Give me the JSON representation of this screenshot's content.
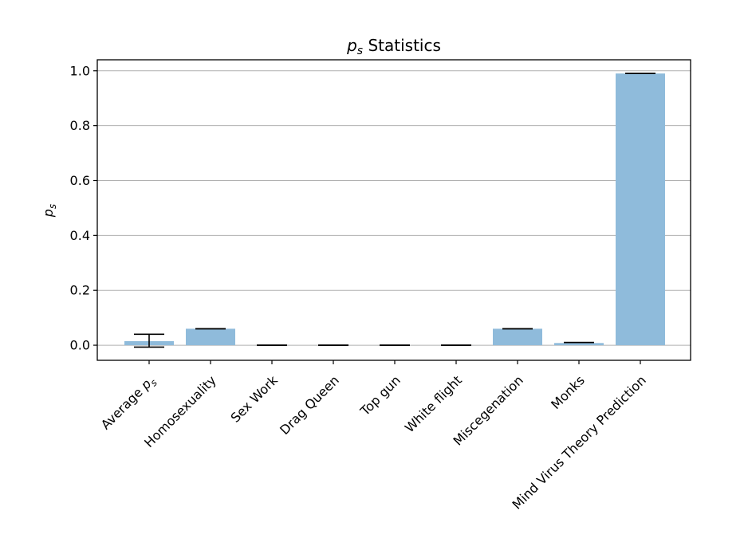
{
  "chart_data": {
    "type": "bar",
    "title_symbol": "p",
    "title_symbol_sub": "s",
    "title_rest": " Statistics",
    "ylabel_symbol": "p",
    "ylabel_sub": "s",
    "categories": [
      {
        "label": "Average ",
        "label_symbol": "p",
        "label_sub": "s"
      },
      {
        "label": "Homosexuality"
      },
      {
        "label": "Sex Work"
      },
      {
        "label": "Drag Queen"
      },
      {
        "label": "Top gun"
      },
      {
        "label": "White flight"
      },
      {
        "label": "Miscegenation"
      },
      {
        "label": "Monks"
      },
      {
        "label": "Mind Virus Theory Prediction"
      }
    ],
    "values": [
      0.015,
      0.06,
      0.0,
      0.0,
      0.0,
      0.0,
      0.06,
      0.008,
      0.99
    ],
    "error_low": [
      -0.007,
      0.06,
      0.0,
      0.0,
      0.0,
      0.0,
      0.06,
      0.01,
      0.99
    ],
    "error_high": [
      0.04,
      0.06,
      0.0,
      0.0,
      0.0,
      0.0,
      0.06,
      0.01,
      0.99
    ],
    "ylim": [
      -0.055,
      1.04
    ],
    "yticks": [
      "0.0",
      "0.2",
      "0.4",
      "0.6",
      "0.8",
      "1.0"
    ],
    "ytick_values": [
      0.0,
      0.2,
      0.4,
      0.6,
      0.8,
      1.0
    ],
    "grid": "horizontal",
    "bar_color": "#8fbbdb",
    "grid_color": "#b0b0b0"
  }
}
